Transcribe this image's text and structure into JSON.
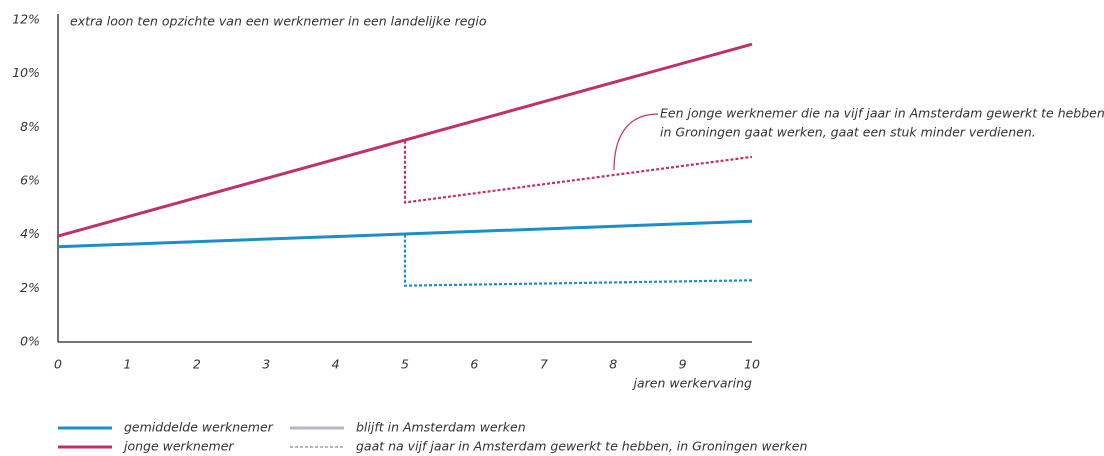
{
  "chart_data": {
    "type": "line",
    "y_label": "extra loon ten opzichte van een werknemer in een landelijke regio",
    "x_label": "jaren werkervaring",
    "xlim": [
      0,
      10
    ],
    "xticks": [
      0,
      1,
      2,
      3,
      4,
      5,
      6,
      7,
      8,
      9,
      10
    ],
    "ylim": [
      0,
      12
    ],
    "yticks": [
      {
        "value": 0,
        "label": "0%"
      },
      {
        "value": 2,
        "label": "2%"
      },
      {
        "value": 4,
        "label": "4%"
      },
      {
        "value": 6,
        "label": "6%"
      },
      {
        "value": 8,
        "label": "8%"
      },
      {
        "value": 10,
        "label": "10%"
      },
      {
        "value": 12,
        "label": "12%"
      }
    ],
    "series": [
      {
        "color": "#1a8fc9",
        "dashed": false,
        "x": [
          0,
          10
        ],
        "values": [
          3.55,
          4.5
        ]
      },
      {
        "color": "#1a8fc9",
        "dashed": true,
        "x": [
          5,
          5,
          10
        ],
        "values": [
          4.0,
          2.1,
          2.3
        ]
      },
      {
        "color": "#c0306a",
        "dashed": false,
        "x": [
          0,
          10
        ],
        "values": [
          3.95,
          11.1
        ]
      },
      {
        "color": "#c0306a",
        "dashed": true,
        "x": [
          5,
          5,
          10
        ],
        "values": [
          7.5,
          5.2,
          6.9
        ]
      }
    ],
    "legend": [
      {
        "label": "gemiddelde werknemer",
        "color": "#1a8fc9",
        "dashed": false
      },
      {
        "label": "jonge werknemer",
        "color": "#c0306a",
        "dashed": false
      },
      {
        "label": "blijft in Amsterdam werken",
        "color": "#b3bac4",
        "dashed": false
      },
      {
        "label": "gaat na vijf jaar in Amsterdam gewerkt te hebben, in Groningen werken",
        "color": "#b3bac4",
        "dashed": true
      }
    ],
    "annotation": [
      "Een jonge werknemer die na vijf jaar in Amsterdam gewerkt te hebben",
      "in Groningen gaat werken, gaat een stuk minder verdienen."
    ]
  }
}
